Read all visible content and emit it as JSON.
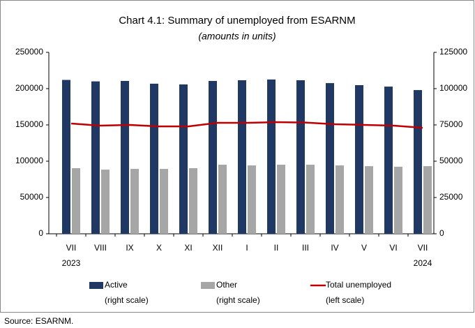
{
  "chart_data": {
    "type": "bar-line",
    "title": "Chart 4.1: Summary of unemployed from ESARNM",
    "subtitle": "(amounts in units)",
    "categories": [
      "VII",
      "VIII",
      "IX",
      "X",
      "XI",
      "XII",
      "I",
      "II",
      "III",
      "IV",
      "V",
      "VI",
      "VII"
    ],
    "year_labels": [
      "2023",
      null,
      null,
      null,
      null,
      null,
      null,
      null,
      null,
      null,
      null,
      null,
      "2024"
    ],
    "series": [
      {
        "name": "Active",
        "scale_note": "(right scale)",
        "kind": "bar",
        "axis": "y2",
        "color": "#1f3864",
        "values": [
          106000,
          105000,
          105300,
          103400,
          102900,
          105300,
          105800,
          106300,
          105800,
          103800,
          102400,
          101400,
          99000
        ]
      },
      {
        "name": "Other",
        "scale_note": "(right scale)",
        "kind": "bar",
        "axis": "y2",
        "color": "#a6a6a6",
        "values": [
          45200,
          44200,
          44700,
          44700,
          45200,
          47600,
          47100,
          47600,
          47600,
          47100,
          46600,
          46200,
          46600
        ]
      },
      {
        "name": "Total unemployed",
        "scale_note": "(left scale)",
        "kind": "line",
        "axis": "y",
        "color": "#c00000",
        "values": [
          151900,
          149000,
          150000,
          148000,
          148000,
          152900,
          152900,
          153800,
          153300,
          151000,
          150000,
          149000,
          146000
        ]
      }
    ],
    "ylim": [
      0,
      250000
    ],
    "yticks": [
      0,
      50000,
      100000,
      150000,
      200000,
      250000
    ],
    "y2lim": [
      0,
      125000
    ],
    "y2ticks": [
      0,
      25000,
      50000,
      75000,
      100000,
      125000
    ],
    "source": "Source: ESARNM."
  }
}
